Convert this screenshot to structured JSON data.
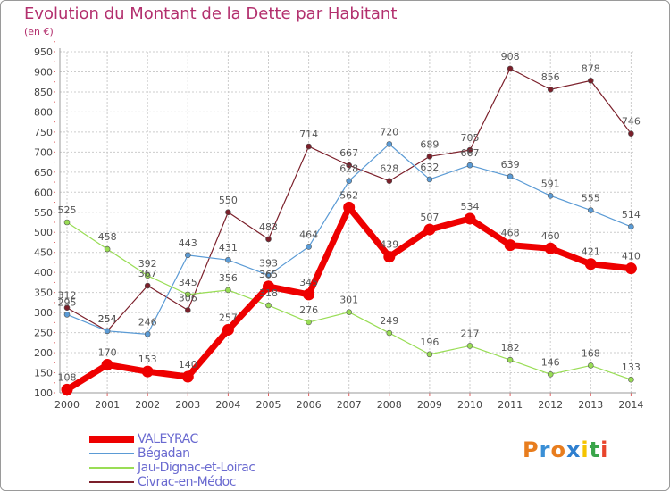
{
  "chart_data": {
    "type": "line",
    "title": "Evolution du Montant de la Dette par Habitant",
    "subtitle": "(en €)",
    "categories": [
      "2000",
      "2001",
      "2002",
      "2003",
      "2004",
      "2005",
      "2006",
      "2007",
      "2008",
      "2009",
      "2010",
      "2011",
      "2012",
      "2013",
      "2014"
    ],
    "ylim": [
      100,
      950
    ],
    "yticks": [
      100,
      150,
      200,
      250,
      300,
      350,
      400,
      450,
      500,
      550,
      600,
      650,
      700,
      750,
      800,
      850,
      900,
      950
    ],
    "grid": true,
    "legend_position": "bottom-left",
    "series": [
      {
        "name": "VALEYRAC",
        "color": "#ee0000",
        "values": [
          108,
          170,
          153,
          140,
          257,
          365,
          345,
          562,
          439,
          507,
          534,
          468,
          460,
          421,
          410
        ]
      },
      {
        "name": "Bégadan",
        "color": "#5b9bd5",
        "values": [
          295,
          254,
          246,
          443,
          431,
          393,
          464,
          628,
          720,
          632,
          667,
          639,
          591,
          555,
          514
        ]
      },
      {
        "name": "Jau-Dignac-et-Loirac",
        "color": "#99dd55",
        "values": [
          525,
          458,
          392,
          345,
          356,
          318,
          276,
          301,
          249,
          196,
          217,
          182,
          146,
          168,
          133
        ]
      },
      {
        "name": "Civrac-en-Médoc",
        "color": "#7b1f2a",
        "values": [
          312,
          254,
          367,
          306,
          550,
          483,
          714,
          667,
          628,
          689,
          705,
          908,
          856,
          878,
          746
        ]
      }
    ]
  },
  "logo": {
    "text": "Proxiti",
    "colors": [
      "#e87d1e",
      "#3a8fd6",
      "#e87d1e",
      "#2e7fcf",
      "#f5c400",
      "#3aa54a",
      "#e8452c"
    ]
  }
}
